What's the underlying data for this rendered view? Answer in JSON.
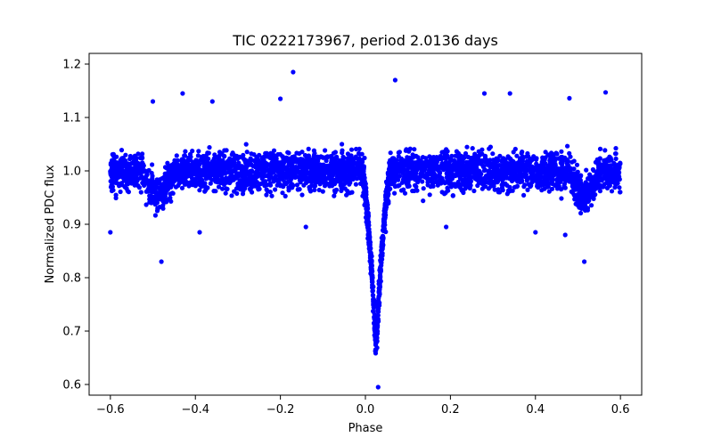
{
  "chart_data": {
    "type": "scatter",
    "title": "TIC 0222173967, period 2.0136 days",
    "xlabel": "Phase",
    "ylabel": "Normalized PDC flux",
    "xlim": [
      -0.65,
      0.65
    ],
    "ylim": [
      0.58,
      1.22
    ],
    "xticks": [
      -0.6,
      -0.4,
      -0.2,
      0.0,
      0.2,
      0.4,
      0.6
    ],
    "xtick_labels": [
      "−0.6",
      "−0.4",
      "−0.2",
      "0.0",
      "0.2",
      "0.4",
      "0.6"
    ],
    "yticks": [
      0.6,
      0.7,
      0.8,
      0.9,
      1.0,
      1.1,
      1.2
    ],
    "ytick_labels": [
      "0.6",
      "0.7",
      "0.8",
      "0.9",
      "1.0",
      "1.1",
      "1.2"
    ],
    "grid": false,
    "legend": "none",
    "marker_color": "#0000ff",
    "series": [
      {
        "name": "PDC flux",
        "phase_range": [
          -0.6,
          0.6
        ],
        "baseline_flux": 1.0,
        "baseline_scatter": 0.035,
        "primary_eclipse": {
          "center_phase": 0.025,
          "min_flux": 0.67,
          "full_width_phase": 0.07
        },
        "secondary_dips": [
          {
            "center_phase": -0.49,
            "min_flux": 0.95
          },
          {
            "center_phase": 0.515,
            "min_flux": 0.95
          }
        ],
        "outliers": [
          {
            "phase": -0.17,
            "flux": 1.185
          },
          {
            "phase": 0.07,
            "flux": 1.17
          },
          {
            "phase": -0.43,
            "flux": 1.145
          },
          {
            "phase": 0.565,
            "flux": 1.147
          },
          {
            "phase": 0.28,
            "flux": 1.145
          },
          {
            "phase": 0.34,
            "flux": 1.145
          },
          {
            "phase": -0.36,
            "flux": 1.13
          },
          {
            "phase": -0.5,
            "flux": 1.13
          },
          {
            "phase": -0.2,
            "flux": 1.135
          },
          {
            "phase": 0.48,
            "flux": 1.136
          },
          {
            "phase": -0.6,
            "flux": 0.885
          },
          {
            "phase": -0.48,
            "flux": 0.83
          },
          {
            "phase": 0.515,
            "flux": 0.83
          },
          {
            "phase": -0.39,
            "flux": 0.885
          },
          {
            "phase": -0.14,
            "flux": 0.895
          },
          {
            "phase": 0.19,
            "flux": 0.895
          },
          {
            "phase": 0.4,
            "flux": 0.885
          },
          {
            "phase": 0.47,
            "flux": 0.88
          },
          {
            "phase": 0.03,
            "flux": 0.595
          }
        ]
      }
    ]
  }
}
